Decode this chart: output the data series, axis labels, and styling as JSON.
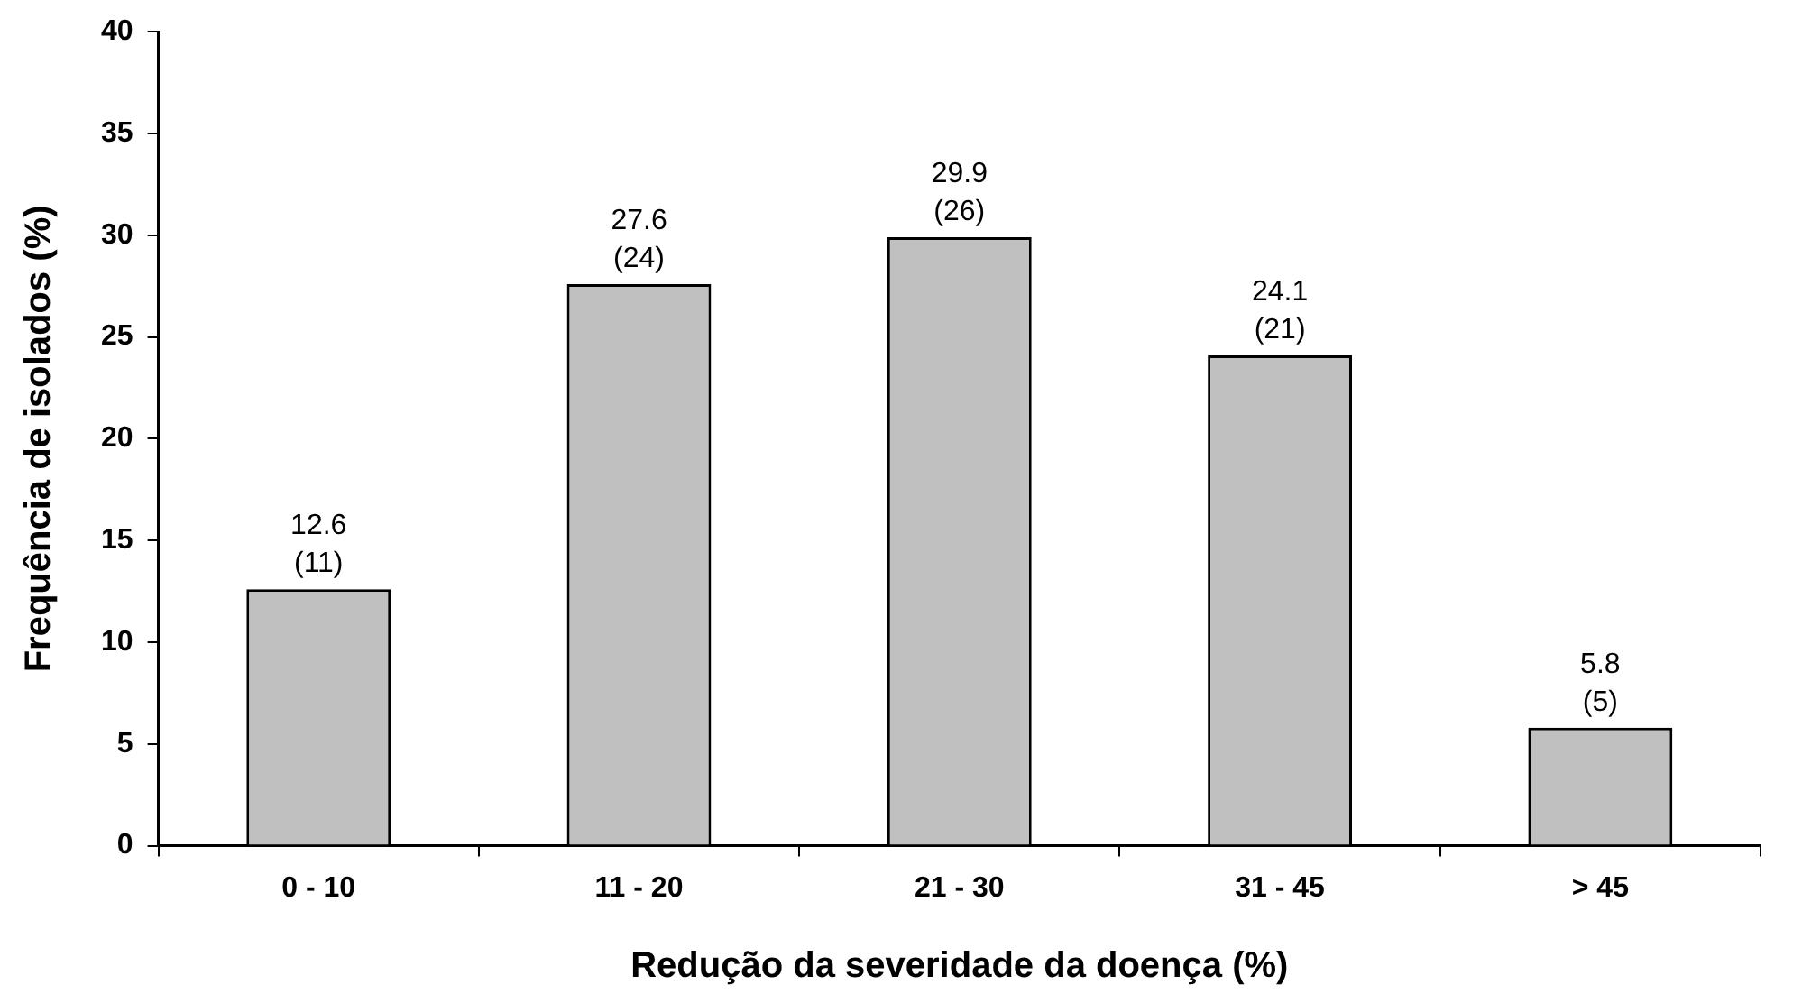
{
  "chart_data": {
    "type": "bar",
    "xlabel": "Redução da severidade da doença (%)",
    "ylabel": "Frequência de isolados (%)",
    "categories": [
      "0 - 10",
      "11 - 20",
      "21 - 30",
      "31 - 45",
      "> 45"
    ],
    "values": [
      12.6,
      27.6,
      29.9,
      24.1,
      5.8
    ],
    "value_labels": [
      "12.6\n(11)",
      "27.6\n(24)",
      "29.9\n(26)",
      "24.1\n(21)",
      "5.8\n(5)"
    ],
    "color": "#c0c0c0",
    "ylim": [
      0,
      40
    ],
    "yticks": [
      0,
      5,
      10,
      15,
      20,
      25,
      30,
      35,
      40
    ],
    "grid": false,
    "legend": false
  }
}
